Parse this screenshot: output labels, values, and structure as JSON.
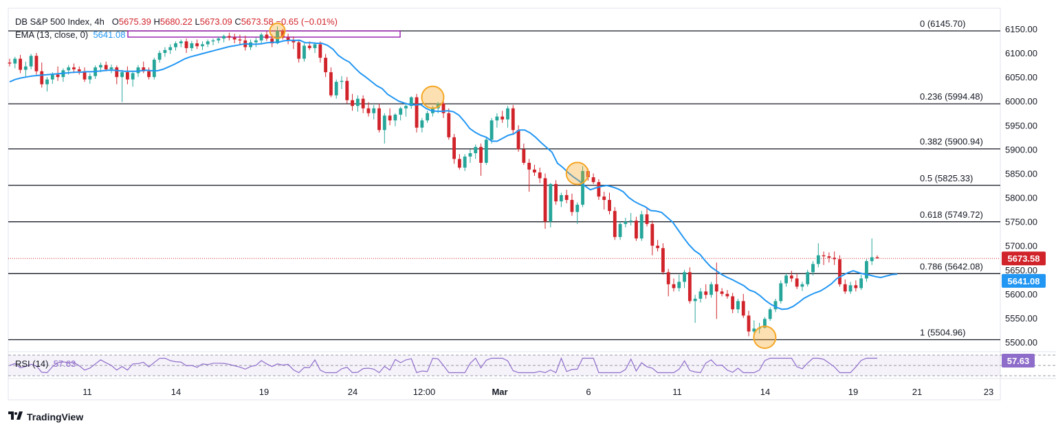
{
  "header": {
    "title": "DB S&P 500 Index, 4h",
    "open_label": "O",
    "open": "5675.39",
    "high_label": "H",
    "high": "5680.22",
    "low_label": "L",
    "low": "5673.09",
    "close_label": "C",
    "close": "5673.58",
    "change": "−0.65 (−0.01%)",
    "ema_label": "EMA (13, close, 0)",
    "ema_value": "5641.08",
    "rsi_label": "RSI (14)",
    "rsi_value": "57.63"
  },
  "branding": {
    "logo_text": "TradingView",
    "logo_icon": "tradingview-logo-icon"
  },
  "colors": {
    "up": "#26a69a",
    "down": "#d1232a",
    "ema": "#2196f3",
    "rsi": "#8e6cc9",
    "fib_line": "#131722",
    "highlight": "#f5a623",
    "price_tag": "#d1232a",
    "ema_tag": "#2196f3"
  },
  "chart_data": {
    "type": "candlestick",
    "price_axis": {
      "ticks": [
        "6150.00",
        "6100.00",
        "6050.00",
        "6000.00",
        "5950.00",
        "5900.00",
        "5850.00",
        "5800.00",
        "5750.00",
        "5700.00",
        "5650.00",
        "5600.00",
        "5550.00",
        "5500.00"
      ],
      "ylim": [
        5488,
        6172
      ]
    },
    "time_axis": {
      "ticks": [
        "11",
        "14",
        "19",
        "24",
        "12:00",
        "Mar",
        "6",
        "11",
        "14",
        "19",
        "21",
        "23"
      ]
    },
    "fib_levels": [
      {
        "ratio": "0",
        "value": 6145.7,
        "label": "0 (6145.70)"
      },
      {
        "ratio": "0.236",
        "value": 5994.48,
        "label": "0.236 (5994.48)"
      },
      {
        "ratio": "0.382",
        "value": 5900.94,
        "label": "0.382 (5900.94)"
      },
      {
        "ratio": "0.5",
        "value": 5825.33,
        "label": "0.5 (5825.33)"
      },
      {
        "ratio": "0.618",
        "value": 5749.72,
        "label": "0.618 (5749.72)"
      },
      {
        "ratio": "0.786",
        "value": 5642.08,
        "label": "0.786 (5642.08)"
      },
      {
        "ratio": "1",
        "value": 5504.96,
        "label": "1 (5504.96)"
      }
    ],
    "current_price": {
      "value": 5673.58,
      "label": "5673.58"
    },
    "ema_last": {
      "value": 5641.08,
      "label": "5641.08"
    },
    "rsi_last": {
      "value": 57.63,
      "label": "57.63"
    },
    "highlights": [
      6146,
      6008,
      5850,
      5510
    ],
    "candles": [
      [
        6080,
        6088,
        6072,
        6078
      ],
      [
        6078,
        6092,
        6068,
        6088
      ],
      [
        6088,
        6096,
        6058,
        6065
      ],
      [
        6065,
        6082,
        6050,
        6072
      ],
      [
        6072,
        6098,
        6066,
        6094
      ],
      [
        6094,
        6100,
        6055,
        6062
      ],
      [
        6062,
        6080,
        6028,
        6035
      ],
      [
        6035,
        6050,
        6020,
        6045
      ],
      [
        6045,
        6060,
        6036,
        6055
      ],
      [
        6055,
        6072,
        6042,
        6050
      ],
      [
        6050,
        6068,
        6040,
        6064
      ],
      [
        6064,
        6075,
        6055,
        6070
      ],
      [
        6070,
        6078,
        6058,
        6066
      ],
      [
        6066,
        6072,
        6055,
        6062
      ],
      [
        6062,
        6070,
        6040,
        6045
      ],
      [
        6045,
        6058,
        6036,
        6052
      ],
      [
        6052,
        6074,
        6046,
        6070
      ],
      [
        6070,
        6080,
        6060,
        6075
      ],
      [
        6075,
        6082,
        6062,
        6066
      ],
      [
        6066,
        6076,
        6058,
        6070
      ],
      [
        6070,
        6074,
        6035,
        6050
      ],
      [
        6050,
        6065,
        5998,
        6060
      ],
      [
        6060,
        6072,
        6035,
        6045
      ],
      [
        6045,
        6062,
        6030,
        6058
      ],
      [
        6058,
        6075,
        6050,
        6070
      ],
      [
        6070,
        6082,
        6058,
        6062
      ],
      [
        6062,
        6070,
        6045,
        6050
      ],
      [
        6050,
        6090,
        6045,
        6086
      ],
      [
        6086,
        6105,
        6080,
        6100
      ],
      [
        6100,
        6112,
        6092,
        6106
      ],
      [
        6106,
        6118,
        6098,
        6112
      ],
      [
        6112,
        6124,
        6105,
        6120
      ],
      [
        6120,
        6128,
        6112,
        6124
      ],
      [
        6124,
        6130,
        6100,
        6110
      ],
      [
        6110,
        6125,
        6104,
        6120
      ],
      [
        6120,
        6128,
        6108,
        6114
      ],
      [
        6114,
        6124,
        6106,
        6118
      ],
      [
        6118,
        6128,
        6112,
        6124
      ],
      [
        6124,
        6130,
        6116,
        6126
      ],
      [
        6126,
        6134,
        6120,
        6130
      ],
      [
        6130,
        6138,
        6122,
        6135
      ],
      [
        6135,
        6142,
        6126,
        6132
      ],
      [
        6132,
        6140,
        6120,
        6128
      ],
      [
        6128,
        6138,
        6118,
        6126
      ],
      [
        6126,
        6136,
        6105,
        6112
      ],
      [
        6112,
        6128,
        6106,
        6122
      ],
      [
        6122,
        6132,
        6112,
        6126
      ],
      [
        6126,
        6142,
        6118,
        6138
      ],
      [
        6138,
        6145,
        6125,
        6130
      ],
      [
        6130,
        6138,
        6112,
        6120
      ],
      [
        6120,
        6155,
        6118,
        6146
      ],
      [
        6146,
        6150,
        6128,
        6132
      ],
      [
        6132,
        6140,
        6118,
        6126
      ],
      [
        6126,
        6134,
        6108,
        6122
      ],
      [
        6122,
        6128,
        6080,
        6088
      ],
      [
        6088,
        6120,
        6082,
        6115
      ],
      [
        6115,
        6124,
        6106,
        6110
      ],
      [
        6110,
        6122,
        6100,
        6118
      ],
      [
        6118,
        6124,
        6080,
        6090
      ],
      [
        6090,
        6098,
        6050,
        6060
      ],
      [
        6060,
        6070,
        6008,
        6012
      ],
      [
        6012,
        6045,
        6005,
        6040
      ],
      [
        6040,
        6052,
        6025,
        6042
      ],
      [
        6042,
        6050,
        5995,
        6002
      ],
      [
        6002,
        6015,
        5980,
        5990
      ],
      [
        5990,
        6012,
        5978,
        6005
      ],
      [
        6005,
        6012,
        5975,
        5985
      ],
      [
        5985,
        5998,
        5968,
        5975
      ],
      [
        5975,
        5992,
        5962,
        5985
      ],
      [
        5985,
        5995,
        5935,
        5940
      ],
      [
        5940,
        5975,
        5912,
        5970
      ],
      [
        5970,
        5985,
        5950,
        5960
      ],
      [
        5960,
        5975,
        5948,
        5972
      ],
      [
        5972,
        5988,
        5960,
        5985
      ],
      [
        5985,
        5996,
        5968,
        5990
      ],
      [
        5990,
        6010,
        5984,
        6008
      ],
      [
        6008,
        6015,
        5935,
        5945
      ],
      [
        5945,
        5965,
        5935,
        5960
      ],
      [
        5960,
        5980,
        5955,
        5975
      ],
      [
        5975,
        5990,
        5968,
        5985
      ],
      [
        5985,
        5998,
        5975,
        5995
      ],
      [
        5995,
        6002,
        5965,
        5975
      ],
      [
        5975,
        5985,
        5920,
        5925
      ],
      [
        5925,
        5932,
        5870,
        5880
      ],
      [
        5880,
        5890,
        5858,
        5862
      ],
      [
        5862,
        5890,
        5855,
        5885
      ],
      [
        5885,
        5900,
        5872,
        5892
      ],
      [
        5892,
        5910,
        5880,
        5905
      ],
      [
        5905,
        5912,
        5845,
        5872
      ],
      [
        5872,
        5925,
        5868,
        5920
      ],
      [
        5920,
        5965,
        5912,
        5960
      ],
      [
        5960,
        5975,
        5945,
        5968
      ],
      [
        5968,
        5980,
        5955,
        5962
      ],
      [
        5962,
        5990,
        5945,
        5985
      ],
      [
        5985,
        5992,
        5930,
        5940
      ],
      [
        5940,
        5950,
        5895,
        5900
      ],
      [
        5900,
        5912,
        5868,
        5872
      ],
      [
        5872,
        5880,
        5812,
        5858
      ],
      [
        5858,
        5868,
        5845,
        5852
      ],
      [
        5852,
        5862,
        5830,
        5840
      ],
      [
        5840,
        5850,
        5735,
        5750
      ],
      [
        5750,
        5830,
        5738,
        5828
      ],
      [
        5828,
        5836,
        5785,
        5792
      ],
      [
        5792,
        5810,
        5780,
        5805
      ],
      [
        5805,
        5816,
        5788,
        5795
      ],
      [
        5795,
        5808,
        5762,
        5770
      ],
      [
        5770,
        5790,
        5745,
        5785
      ],
      [
        5785,
        5865,
        5780,
        5855
      ],
      [
        5855,
        5860,
        5835,
        5842
      ],
      [
        5842,
        5850,
        5828,
        5832
      ],
      [
        5832,
        5838,
        5795,
        5802
      ],
      [
        5802,
        5812,
        5775,
        5795
      ],
      [
        5795,
        5810,
        5765,
        5772
      ],
      [
        5772,
        5780,
        5712,
        5718
      ],
      [
        5718,
        5750,
        5712,
        5745
      ],
      [
        5745,
        5758,
        5738,
        5750
      ],
      [
        5750,
        5768,
        5742,
        5752
      ],
      [
        5752,
        5760,
        5710,
        5715
      ],
      [
        5715,
        5772,
        5710,
        5765
      ],
      [
        5765,
        5780,
        5740,
        5745
      ],
      [
        5745,
        5752,
        5680,
        5700
      ],
      [
        5700,
        5712,
        5688,
        5695
      ],
      [
        5695,
        5705,
        5640,
        5645
      ],
      [
        5645,
        5652,
        5595,
        5620
      ],
      [
        5620,
        5632,
        5605,
        5612
      ],
      [
        5612,
        5640,
        5605,
        5625
      ],
      [
        5625,
        5650,
        5612,
        5645
      ],
      [
        5645,
        5655,
        5580,
        5585
      ],
      [
        5585,
        5598,
        5540,
        5590
      ],
      [
        5590,
        5612,
        5582,
        5605
      ],
      [
        5605,
        5620,
        5590,
        5598
      ],
      [
        5598,
        5625,
        5592,
        5620
      ],
      [
        5620,
        5665,
        5548,
        5605
      ],
      [
        5605,
        5612,
        5595,
        5600
      ],
      [
        5600,
        5608,
        5590,
        5595
      ],
      [
        5595,
        5602,
        5560,
        5568
      ],
      [
        5568,
        5590,
        5560,
        5585
      ],
      [
        5585,
        5600,
        5550,
        5555
      ],
      [
        5555,
        5565,
        5512,
        5522
      ],
      [
        5522,
        5545,
        5505,
        5528
      ],
      [
        5528,
        5540,
        5518,
        5530
      ],
      [
        5530,
        5552,
        5528,
        5548
      ],
      [
        5548,
        5572,
        5544,
        5568
      ],
      [
        5568,
        5590,
        5562,
        5585
      ],
      [
        5585,
        5628,
        5580,
        5622
      ],
      [
        5622,
        5642,
        5615,
        5638
      ],
      [
        5638,
        5648,
        5625,
        5632
      ],
      [
        5632,
        5642,
        5610,
        5615
      ],
      [
        5615,
        5625,
        5606,
        5620
      ],
      [
        5620,
        5650,
        5615,
        5645
      ],
      [
        5645,
        5668,
        5638,
        5662
      ],
      [
        5662,
        5705,
        5655,
        5680
      ],
      [
        5680,
        5688,
        5660,
        5678
      ],
      [
        5678,
        5686,
        5665,
        5675
      ],
      [
        5675,
        5688,
        5660,
        5672
      ],
      [
        5672,
        5680,
        5615,
        5620
      ],
      [
        5620,
        5630,
        5600,
        5605
      ],
      [
        5605,
        5625,
        5600,
        5618
      ],
      [
        5618,
        5628,
        5605,
        5612
      ],
      [
        5612,
        5640,
        5608,
        5632
      ],
      [
        5632,
        5672,
        5625,
        5668
      ],
      [
        5668,
        5715,
        5660,
        5676
      ],
      [
        5676,
        5680,
        5673,
        5674
      ]
    ],
    "ema": [
      6040,
      6045,
      6048,
      6050,
      6052,
      6053,
      6054,
      6055,
      6056,
      6057,
      6058,
      6059,
      6060,
      6060,
      6061,
      6061,
      6062,
      6063,
      6064,
      6064,
      6063,
      6062,
      6062,
      6062,
      6063,
      6064,
      6063,
      6063,
      6066,
      6071,
      6076,
      6082,
      6088,
      6092,
      6095,
      6098,
      6101,
      6104,
      6107,
      6110,
      6113,
      6115,
      6117,
      6119,
      6118,
      6118,
      6119,
      6121,
      6122,
      6122,
      6125,
      6126,
      6126,
      6126,
      6121,
      6121,
      6120,
      6120,
      6116,
      6108,
      6095,
      6087,
      6081,
      6069,
      6058,
      6050,
      6041,
      6032,
      6026,
      6014,
      6007,
      6000,
      5996,
      5993,
      5992,
      5993,
      5985,
      5980,
      5979,
      5979,
      5980,
      5978,
      5971,
      5958,
      5943,
      5935,
      5929,
      5925,
      5917,
      5917,
      5923,
      5929,
      5932,
      5940,
      5940,
      5934,
      5925,
      5914,
      5904,
      5894,
      5871,
      5862,
      5851,
      5842,
      5834,
      5824,
      5816,
      5820,
      5823,
      5825,
      5822,
      5818,
      5812,
      5800,
      5792,
      5786,
      5781,
      5773,
      5772,
      5769,
      5759,
      5749,
      5733,
      5717,
      5702,
      5690,
      5682,
      5668,
      5656,
      5648,
      5640,
      5634,
      5629,
      5623,
      5617,
      5608,
      5604,
      5596,
      5586,
      5578,
      5572,
      5568,
      5569,
      5574,
      5582,
      5591,
      5597,
      5602,
      5606,
      5613,
      5621,
      5632,
      5638,
      5644,
      5648,
      5644,
      5641,
      5639,
      5636,
      5634,
      5637,
      5640,
      5641
    ]
  }
}
